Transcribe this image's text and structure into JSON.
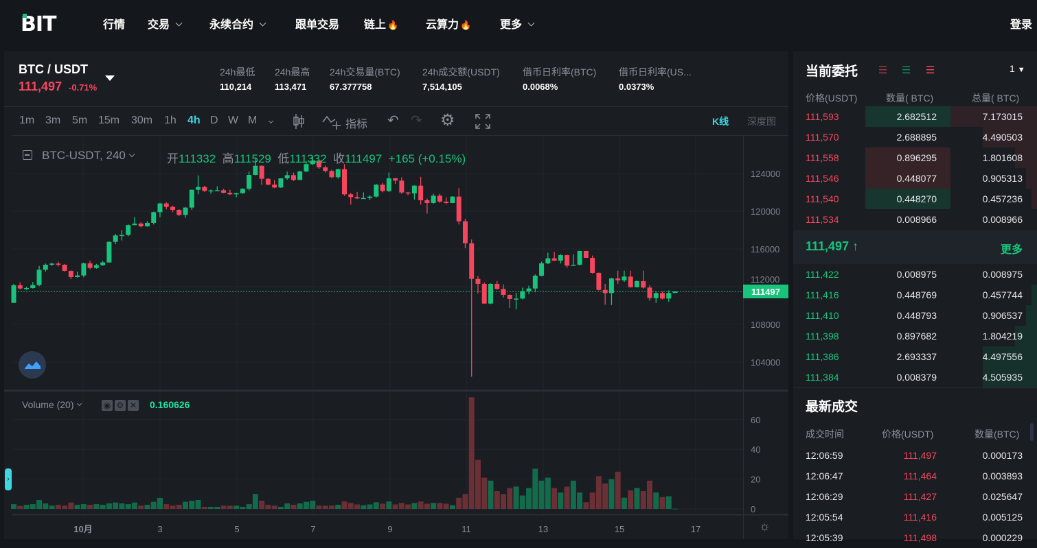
{
  "nav": {
    "logo": "BIT",
    "items": [
      {
        "label": "行情"
      },
      {
        "label": "交易",
        "dropdown": true
      },
      {
        "label": "永续合约",
        "dropdown": true
      },
      {
        "label": "跟单交易"
      },
      {
        "label": "链上",
        "hot": true
      },
      {
        "label": "云算力",
        "hot": true
      },
      {
        "label": "更多",
        "dropdown": true
      }
    ],
    "login": "登录"
  },
  "ticker": {
    "pair": "BTC / USDT",
    "price": "111,497",
    "change": "-0.71%",
    "stats": [
      {
        "label": "24h最低",
        "value": "110,214"
      },
      {
        "label": "24h最高",
        "value": "113,471"
      },
      {
        "label": "24h交易量(BTC)",
        "value": "67.377758"
      },
      {
        "label": "24h成交额(USDT)",
        "value": "7,514,105"
      },
      {
        "label": "借币日利率(BTC)",
        "value": "0.0068%"
      },
      {
        "label": "借币日利率(US...",
        "value": "0.0373%"
      }
    ]
  },
  "toolbar": {
    "intervals": [
      "1m",
      "3m",
      "5m",
      "15m",
      "30m",
      "1h",
      "4h",
      "D",
      "W",
      "M"
    ],
    "active": "4h",
    "indicators": "指标",
    "view_kline": "K线",
    "view_depth": "深度图"
  },
  "legend": {
    "symbol": "BTC-USDT, 240",
    "open_label": "开",
    "open": "111332",
    "high_label": "高",
    "high": "111529",
    "low_label": "低",
    "low": "111332",
    "close_label": "收",
    "close": "111497",
    "change": "+165 (+0.15%)"
  },
  "volume_legend": {
    "title": "Volume (20)",
    "value": "0.160626"
  },
  "colors": {
    "up": "#18c37b",
    "down": "#f6465d",
    "accent": "#3fd6e0"
  },
  "chart_data": {
    "type": "candlestick",
    "interval": "4h",
    "price_ticks": [
      104000,
      108000,
      112000,
      116000,
      120000,
      124000
    ],
    "price_ylim": [
      101000,
      127800
    ],
    "last_price": 111497,
    "last_price_label": "111497",
    "time_ticks": [
      "10月",
      "3",
      "5",
      "7",
      "9",
      "11",
      "13",
      "15",
      "17"
    ],
    "volume_ticks": [
      0,
      20,
      40,
      60
    ],
    "candles": [
      [
        110280,
        112300,
        110280,
        112147
      ],
      [
        112147,
        112450,
        111700,
        111808
      ],
      [
        111808,
        112000,
        111650,
        111855
      ],
      [
        111855,
        112500,
        111800,
        112172
      ],
      [
        112172,
        114200,
        112050,
        113796
      ],
      [
        113796,
        114450,
        113600,
        114329
      ],
      [
        114329,
        114550,
        114200,
        114450
      ],
      [
        114450,
        114650,
        114150,
        114329
      ],
      [
        114329,
        114400,
        113600,
        113675
      ],
      [
        113675,
        113720,
        112800,
        113020
      ],
      [
        113020,
        113600,
        112950,
        113190
      ],
      [
        113190,
        114550,
        113000,
        114475
      ],
      [
        114475,
        114760,
        113850,
        113990
      ],
      [
        113990,
        114420,
        113900,
        114280
      ],
      [
        114280,
        114720,
        114200,
        114570
      ],
      [
        114570,
        116800,
        114550,
        116753
      ],
      [
        116753,
        117600,
        116500,
        117430
      ],
      [
        117430,
        118000,
        116900,
        117480
      ],
      [
        117480,
        118600,
        117350,
        118530
      ],
      [
        118530,
        119400,
        118500,
        118690
      ],
      [
        118690,
        118830,
        118300,
        118400
      ],
      [
        118400,
        118950,
        118350,
        118765
      ],
      [
        118765,
        119950,
        118600,
        119900
      ],
      [
        119900,
        120900,
        119350,
        120825
      ],
      [
        120825,
        120950,
        120200,
        120460
      ],
      [
        120460,
        120600,
        119900,
        120150
      ],
      [
        120150,
        120200,
        119500,
        119610
      ],
      [
        119610,
        120450,
        119300,
        120390
      ],
      [
        120390,
        122300,
        120150,
        122280
      ],
      [
        122280,
        123800,
        121800,
        122570
      ],
      [
        122570,
        122700,
        122050,
        122160
      ],
      [
        122160,
        122300,
        121850,
        122210
      ],
      [
        122210,
        122650,
        122130,
        122230
      ],
      [
        122230,
        122380,
        121900,
        121965
      ],
      [
        121965,
        122280,
        121720,
        121795
      ],
      [
        121795,
        121950,
        121500,
        121915
      ],
      [
        121915,
        122450,
        121850,
        122380
      ],
      [
        122380,
        124200,
        122200,
        123855
      ],
      [
        123855,
        125650,
        123800,
        124825
      ],
      [
        124825,
        124850,
        122800,
        123443
      ],
      [
        123443,
        123500,
        122750,
        122813
      ],
      [
        122813,
        123300,
        122450,
        122520
      ],
      [
        122520,
        123500,
        122480,
        123490
      ],
      [
        123490,
        124200,
        123350,
        123830
      ],
      [
        123830,
        124100,
        123200,
        123320
      ],
      [
        123320,
        124300,
        123300,
        124220
      ],
      [
        124220,
        125300,
        124150,
        124995
      ],
      [
        124995,
        125800,
        124900,
        125383
      ],
      [
        125383,
        125450,
        124500,
        124655
      ],
      [
        124655,
        124850,
        124100,
        124268
      ],
      [
        124268,
        124400,
        123500,
        123613
      ],
      [
        123613,
        124500,
        123450,
        124460
      ],
      [
        124460,
        125000,
        121650,
        121795
      ],
      [
        121795,
        121950,
        120700,
        121504
      ],
      [
        121504,
        122050,
        121300,
        121360
      ],
      [
        121360,
        122000,
        121300,
        121407
      ],
      [
        121407,
        121700,
        121200,
        121553
      ],
      [
        121553,
        122900,
        121450,
        122813
      ],
      [
        122813,
        123000,
        122000,
        122135
      ],
      [
        122135,
        124100,
        122050,
        123490
      ],
      [
        123490,
        123550,
        122900,
        123250
      ],
      [
        123250,
        123600,
        121850,
        121990
      ],
      [
        121990,
        122050,
        121700,
        121890
      ],
      [
        121890,
        122750,
        121250,
        122715
      ],
      [
        122715,
        123650,
        120700,
        121165
      ],
      [
        121165,
        121350,
        119750,
        120875
      ],
      [
        120875,
        121850,
        120800,
        121650
      ],
      [
        121650,
        121850,
        120900,
        121020
      ],
      [
        121020,
        121450,
        120750,
        120875
      ],
      [
        120875,
        121600,
        120850,
        121553
      ],
      [
        121553,
        122450,
        118600,
        118935
      ],
      [
        118935,
        119200,
        116100,
        116608
      ],
      [
        116608,
        117000,
        102450,
        112826
      ],
      [
        112826,
        113150,
        111300,
        112293
      ],
      [
        112293,
        112450,
        110200,
        110210
      ],
      [
        110210,
        112350,
        110150,
        112293
      ],
      [
        112293,
        112600,
        111700,
        111760
      ],
      [
        111760,
        112250,
        110850,
        111130
      ],
      [
        111130,
        111180,
        109750,
        110693
      ],
      [
        110693,
        111350,
        109600,
        110740
      ],
      [
        110740,
        111900,
        110650,
        111520
      ],
      [
        111520,
        112100,
        111200,
        111808
      ],
      [
        111808,
        113300,
        111400,
        113165
      ],
      [
        113165,
        114650,
        113100,
        114475
      ],
      [
        114475,
        115600,
        114400,
        115008
      ],
      [
        115008,
        115700,
        114700,
        114765
      ],
      [
        114765,
        115450,
        114450,
        115340
      ],
      [
        115340,
        115400,
        114000,
        114232
      ],
      [
        114232,
        115440,
        114200,
        114330
      ],
      [
        114330,
        115800,
        114250,
        115783
      ],
      [
        115783,
        115800,
        115050,
        115056
      ],
      [
        115056,
        115300,
        113400,
        113457
      ],
      [
        113457,
        113500,
        111600,
        111662
      ],
      [
        111662,
        112300,
        110100,
        111324
      ],
      [
        111324,
        112950,
        110050,
        112875
      ],
      [
        112875,
        113700,
        112300,
        112680
      ],
      [
        112680,
        113700,
        112500,
        113068
      ],
      [
        113068,
        113700,
        111900,
        111953
      ],
      [
        111953,
        112700,
        111900,
        112584
      ],
      [
        112584,
        113700,
        111800,
        111905
      ],
      [
        111905,
        112150,
        110500,
        110790
      ],
      [
        110790,
        111500,
        110300,
        111324
      ],
      [
        111324,
        111500,
        110650,
        110741
      ],
      [
        110741,
        111600,
        110400,
        111324
      ],
      [
        111332,
        111529,
        111332,
        111497
      ]
    ],
    "volumes": [
      3.2,
      2,
      2.8,
      3.2,
      6,
      3.7,
      2.2,
      2.8,
      2.2,
      4.3,
      2.8,
      3.2,
      2.8,
      3.2,
      2.8,
      3.7,
      4.3,
      3.7,
      3.2,
      4.3,
      2.2,
      2.8,
      4.8,
      7.4,
      3.2,
      2.2,
      2.8,
      4.8,
      5.5,
      6,
      1.4,
      1.4,
      1.4,
      2.2,
      2.2,
      2.2,
      1.4,
      3.2,
      10,
      5.5,
      2.8,
      2.2,
      1.4,
      3.7,
      2.8,
      3.7,
      4.8,
      5.5,
      2.2,
      2.2,
      2.2,
      2.8,
      5,
      4,
      3,
      2.5,
      3,
      4.5,
      3.5,
      5,
      3,
      4,
      3,
      4,
      5,
      3.5,
      4,
      4,
      3.5,
      2.5,
      7.5,
      10,
      75,
      33,
      21,
      19,
      12,
      10,
      14,
      15,
      9,
      14,
      27,
      19,
      21,
      14,
      11,
      15,
      19,
      11,
      4.5,
      11,
      22,
      17,
      20,
      25,
      7.5,
      12.5,
      14,
      12,
      19,
      11,
      8,
      8.5,
      0.16
    ]
  },
  "orderbook": {
    "title": "当前委托",
    "precision": "1",
    "headers": [
      "价格(USDT)",
      "数量( BTC)",
      "总量( BTC)"
    ],
    "asks": [
      {
        "price": "111,593",
        "qty": "2.682512",
        "total": "7.173015",
        "flash": "green"
      },
      {
        "price": "111,570",
        "qty": "2.688895",
        "total": "4.490503"
      },
      {
        "price": "111,558",
        "qty": "0.896295",
        "total": "1.801608",
        "flash": "red"
      },
      {
        "price": "111,546",
        "qty": "0.448077",
        "total": "0.905313",
        "flash": "red"
      },
      {
        "price": "111,540",
        "qty": "0.448270",
        "total": "0.457236",
        "flash": "green"
      },
      {
        "price": "111,534",
        "qty": "0.008966",
        "total": "0.008966"
      }
    ],
    "last": "111,497",
    "more": "更多",
    "bids": [
      {
        "price": "111,422",
        "qty": "0.008975",
        "total": "0.008975"
      },
      {
        "price": "111,416",
        "qty": "0.448769",
        "total": "0.457744"
      },
      {
        "price": "111,410",
        "qty": "0.448793",
        "total": "0.906537"
      },
      {
        "price": "111,398",
        "qty": "0.897682",
        "total": "1.804219"
      },
      {
        "price": "111,386",
        "qty": "2.693337",
        "total": "4.497556"
      },
      {
        "price": "111,384",
        "qty": "0.008379",
        "total": "4.505935"
      }
    ]
  },
  "trades": {
    "title": "最新成交",
    "headers": [
      "成交时间",
      "价格(USDT)",
      "数量(BTC)"
    ],
    "rows": [
      {
        "time": "12:06:59",
        "price": "111,497",
        "qty": "0.000173"
      },
      {
        "time": "12:06:47",
        "price": "111,464",
        "qty": "0.003893"
      },
      {
        "time": "12:06:29",
        "price": "111,427",
        "qty": "0.025647"
      },
      {
        "time": "12:05:54",
        "price": "111,416",
        "qty": "0.005125"
      },
      {
        "time": "12:05:39",
        "price": "111,498",
        "qty": "0.000229"
      }
    ]
  }
}
